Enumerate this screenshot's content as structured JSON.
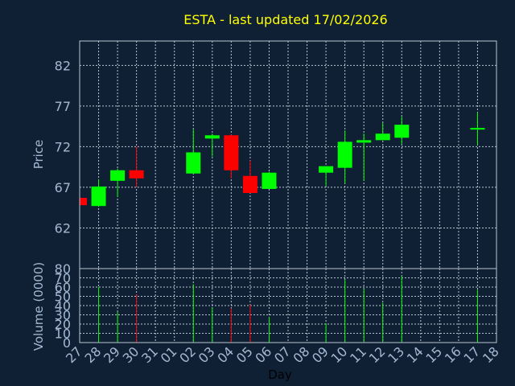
{
  "chart_data": {
    "type": "candlestick",
    "title": "ESTA - last updated 17/02/2026",
    "xlabel": "Day",
    "price_axis": {
      "label": "Price",
      "ylim": [
        57,
        85
      ],
      "ticks": [
        62,
        67,
        72,
        77,
        82
      ]
    },
    "volume_axis": {
      "label": "Volume (0000)",
      "ylim": [
        0,
        80
      ],
      "ticks": [
        0,
        10,
        20,
        30,
        40,
        50,
        60,
        70,
        80
      ]
    },
    "x_ticks": [
      "27",
      "28",
      "29",
      "30",
      "31",
      "01",
      "02",
      "03",
      "04",
      "05",
      "06",
      "07",
      "08",
      "09",
      "10",
      "11",
      "12",
      "13",
      "14",
      "15",
      "16",
      "17",
      "18"
    ],
    "grid": true,
    "colors": {
      "up": "#00ff00",
      "down": "#ff0000",
      "background": "#0f2035",
      "title": "#ffff00",
      "axis_text": "#a3b8d1",
      "grid": "#b9c3d0"
    },
    "candles": [
      {
        "day": "27",
        "open": 65.7,
        "high": 65.7,
        "low": 64.8,
        "close": 64.8,
        "volume": 0
      },
      {
        "day": "28",
        "open": 64.7,
        "high": 68.0,
        "low": 64.6,
        "close": 67.1,
        "volume": 60
      },
      {
        "day": "29",
        "open": 67.8,
        "high": 69.3,
        "low": 65.8,
        "close": 69.1,
        "volume": 33
      },
      {
        "day": "30",
        "open": 69.1,
        "high": 72.0,
        "low": 67.0,
        "close": 68.1,
        "volume": 52
      },
      {
        "day": "02",
        "open": 68.7,
        "high": 74.1,
        "low": 68.7,
        "close": 71.3,
        "volume": 63
      },
      {
        "day": "03",
        "open": 73.0,
        "high": 73.6,
        "low": 70.8,
        "close": 73.4,
        "volume": 38
      },
      {
        "day": "04",
        "open": 73.4,
        "high": 73.5,
        "low": 68.1,
        "close": 69.1,
        "volume": 37
      },
      {
        "day": "05",
        "open": 68.4,
        "high": 70.3,
        "low": 66.3,
        "close": 66.3,
        "volume": 41
      },
      {
        "day": "06",
        "open": 66.8,
        "high": 68.9,
        "low": 66.8,
        "close": 68.8,
        "volume": 28
      },
      {
        "day": "09",
        "open": 68.8,
        "high": 69.6,
        "low": 67.2,
        "close": 69.6,
        "volume": 21
      },
      {
        "day": "10",
        "open": 69.4,
        "high": 74.0,
        "low": 67.5,
        "close": 72.6,
        "volume": 68
      },
      {
        "day": "11",
        "open": 72.5,
        "high": 73.6,
        "low": 67.8,
        "close": 72.8,
        "volume": 58
      },
      {
        "day": "12",
        "open": 72.8,
        "high": 74.9,
        "low": 72.8,
        "close": 73.6,
        "volume": 43
      },
      {
        "day": "13",
        "open": 73.1,
        "high": 75.7,
        "low": 72.3,
        "close": 74.7,
        "volume": 72
      },
      {
        "day": "17",
        "open": 74.2,
        "high": 76.2,
        "low": 72.2,
        "close": 74.3,
        "volume": 57
      }
    ]
  }
}
